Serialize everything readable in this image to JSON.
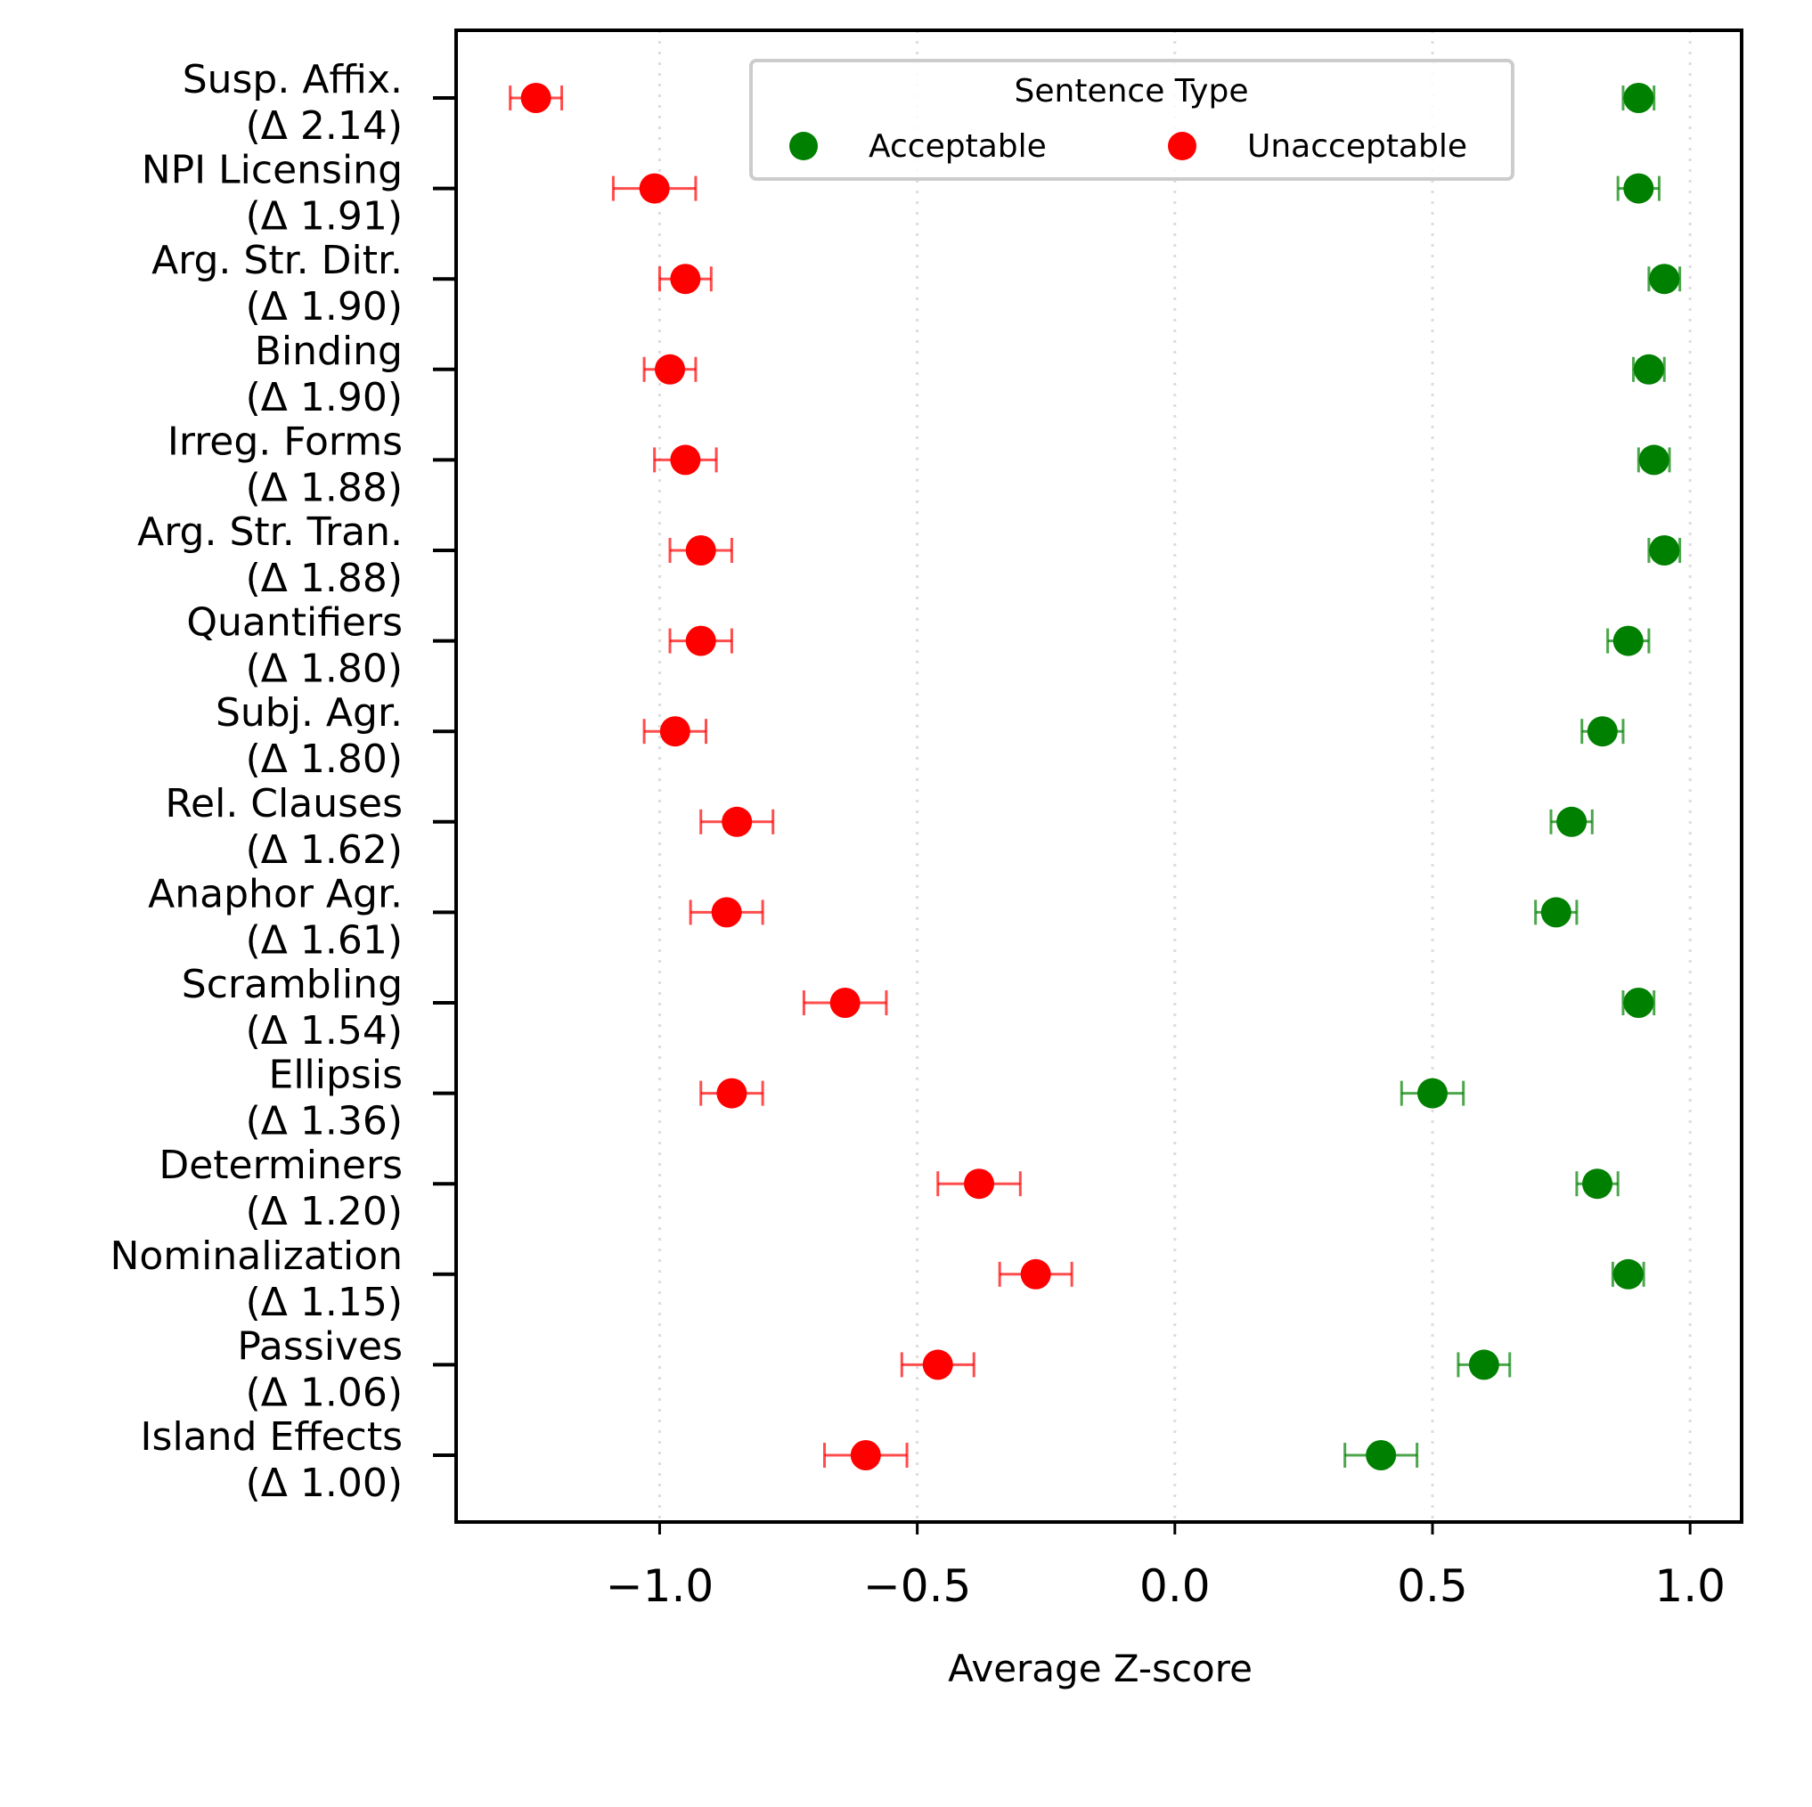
{
  "chart_data": {
    "type": "scatter",
    "xlabel": "Average Z-score",
    "xlim": [
      -1.395,
      1.1
    ],
    "xticks": [
      -1.0,
      -0.5,
      0.0,
      0.5,
      1.0
    ],
    "xtick_labels": [
      "−1.0",
      "−0.5",
      "0.0",
      "0.5",
      "1.0"
    ],
    "grid": "x dotted",
    "legend": {
      "title": "Sentence Type",
      "placement": "top-center",
      "entries": [
        {
          "label": "Acceptable",
          "color": "#008000"
        },
        {
          "label": "Unacceptable",
          "color": "#ff0000"
        }
      ]
    },
    "categories": [
      {
        "name": "Susp. Affix.",
        "delta": "(Δ 2.14)"
      },
      {
        "name": "NPI Licensing",
        "delta": "(Δ 1.91)"
      },
      {
        "name": "Arg. Str. Ditr.",
        "delta": "(Δ 1.90)"
      },
      {
        "name": "Binding",
        "delta": "(Δ 1.90)"
      },
      {
        "name": "Irreg. Forms",
        "delta": "(Δ 1.88)"
      },
      {
        "name": "Arg. Str. Tran.",
        "delta": "(Δ 1.88)"
      },
      {
        "name": "Quantifiers",
        "delta": "(Δ 1.80)"
      },
      {
        "name": "Subj. Agr.",
        "delta": "(Δ 1.80)"
      },
      {
        "name": "Rel. Clauses",
        "delta": "(Δ 1.62)"
      },
      {
        "name": "Anaphor Agr.",
        "delta": "(Δ 1.61)"
      },
      {
        "name": "Scrambling",
        "delta": "(Δ 1.54)"
      },
      {
        "name": "Ellipsis",
        "delta": "(Δ 1.36)"
      },
      {
        "name": "Determiners",
        "delta": "(Δ 1.20)"
      },
      {
        "name": "Nominalization",
        "delta": "(Δ 1.15)"
      },
      {
        "name": "Passives",
        "delta": "(Δ 1.06)"
      },
      {
        "name": "Island Effects",
        "delta": "(Δ 1.00)"
      }
    ],
    "series": [
      {
        "name": "Acceptable",
        "color": "#008000",
        "values": [
          0.9,
          0.9,
          0.95,
          0.92,
          0.93,
          0.95,
          0.88,
          0.83,
          0.77,
          0.74,
          0.9,
          0.5,
          0.82,
          0.88,
          0.6,
          0.4
        ],
        "error": [
          0.03,
          0.04,
          0.03,
          0.03,
          0.03,
          0.03,
          0.04,
          0.04,
          0.04,
          0.04,
          0.03,
          0.06,
          0.04,
          0.03,
          0.05,
          0.07
        ]
      },
      {
        "name": "Unacceptable",
        "color": "#ff0000",
        "values": [
          -1.24,
          -1.01,
          -0.95,
          -0.98,
          -0.95,
          -0.92,
          -0.92,
          -0.97,
          -0.85,
          -0.87,
          -0.64,
          -0.86,
          -0.38,
          -0.27,
          -0.46,
          -0.6
        ],
        "error": [
          0.05,
          0.08,
          0.05,
          0.05,
          0.06,
          0.06,
          0.06,
          0.06,
          0.07,
          0.07,
          0.08,
          0.06,
          0.08,
          0.07,
          0.07,
          0.08
        ]
      }
    ]
  }
}
